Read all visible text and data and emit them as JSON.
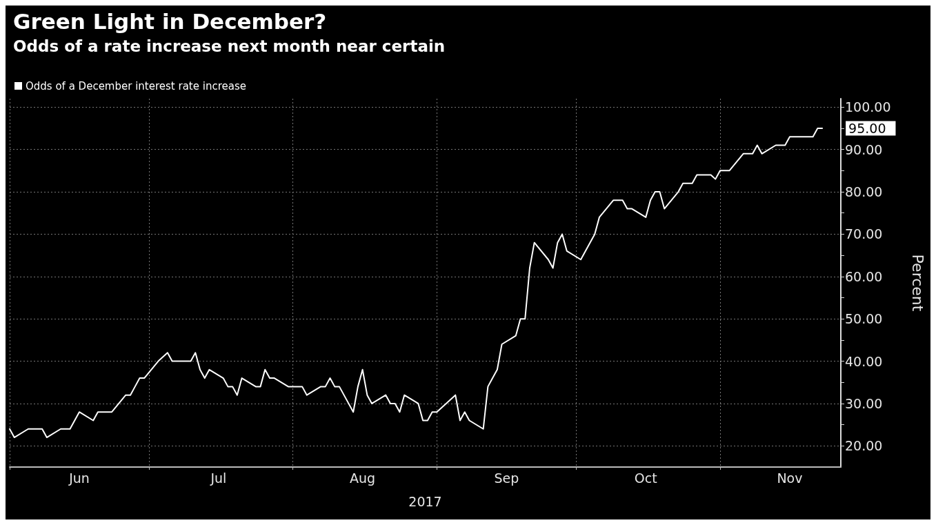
{
  "chart_data": {
    "type": "line",
    "title": "Green Light in December?",
    "subtitle": "Odds of a rate increase next month near certain",
    "xlabel": "2017",
    "ylabel": "Percent",
    "x": [
      "2017-06-01",
      "2017-06-02",
      "2017-06-05",
      "2017-06-06",
      "2017-06-07",
      "2017-06-08",
      "2017-06-09",
      "2017-06-12",
      "2017-06-13",
      "2017-06-14",
      "2017-06-15",
      "2017-06-16",
      "2017-06-19",
      "2017-06-20",
      "2017-06-21",
      "2017-06-22",
      "2017-06-23",
      "2017-06-26",
      "2017-06-27",
      "2017-06-28",
      "2017-06-29",
      "2017-06-30",
      "2017-07-03",
      "2017-07-05",
      "2017-07-06",
      "2017-07-07",
      "2017-07-10",
      "2017-07-11",
      "2017-07-12",
      "2017-07-13",
      "2017-07-14",
      "2017-07-17",
      "2017-07-18",
      "2017-07-19",
      "2017-07-20",
      "2017-07-21",
      "2017-07-24",
      "2017-07-25",
      "2017-07-26",
      "2017-07-27",
      "2017-07-28",
      "2017-07-31",
      "2017-08-01",
      "2017-08-02",
      "2017-08-03",
      "2017-08-04",
      "2017-08-07",
      "2017-08-08",
      "2017-08-09",
      "2017-08-10",
      "2017-08-11",
      "2017-08-14",
      "2017-08-15",
      "2017-08-16",
      "2017-08-17",
      "2017-08-18",
      "2017-08-21",
      "2017-08-22",
      "2017-08-23",
      "2017-08-24",
      "2017-08-25",
      "2017-08-28",
      "2017-08-29",
      "2017-08-30",
      "2017-08-31",
      "2017-09-01",
      "2017-09-05",
      "2017-09-06",
      "2017-09-07",
      "2017-09-08",
      "2017-09-11",
      "2017-09-12",
      "2017-09-13",
      "2017-09-14",
      "2017-09-15",
      "2017-09-18",
      "2017-09-19",
      "2017-09-20",
      "2017-09-21",
      "2017-09-22",
      "2017-09-25",
      "2017-09-26",
      "2017-09-27",
      "2017-09-28",
      "2017-09-29",
      "2017-10-02",
      "2017-10-03",
      "2017-10-04",
      "2017-10-05",
      "2017-10-06",
      "2017-10-09",
      "2017-10-10",
      "2017-10-11",
      "2017-10-12",
      "2017-10-13",
      "2017-10-16",
      "2017-10-17",
      "2017-10-18",
      "2017-10-19",
      "2017-10-20",
      "2017-10-23",
      "2017-10-24",
      "2017-10-25",
      "2017-10-26",
      "2017-10-27",
      "2017-10-30",
      "2017-10-31",
      "2017-11-01",
      "2017-11-02",
      "2017-11-03",
      "2017-11-06",
      "2017-11-07",
      "2017-11-08",
      "2017-11-09",
      "2017-11-10",
      "2017-11-13",
      "2017-11-14",
      "2017-11-15",
      "2017-11-16",
      "2017-11-17",
      "2017-11-20",
      "2017-11-21",
      "2017-11-22",
      "2017-11-23"
    ],
    "series": [
      {
        "name": "Odds of a December interest rate increase",
        "color": "#ffffff",
        "values": [
          24,
          22,
          24,
          24,
          24,
          24,
          22,
          24,
          24,
          24,
          26,
          28,
          26,
          28,
          28,
          28,
          28,
          32,
          32,
          34,
          36,
          36,
          40,
          42,
          40,
          40,
          40,
          42,
          38,
          36,
          38,
          36,
          34,
          34,
          32,
          36,
          34,
          34,
          38,
          36,
          36,
          34,
          34,
          34,
          34,
          32,
          34,
          34,
          36,
          34,
          34,
          28,
          34,
          38,
          32,
          30,
          32,
          30,
          30,
          28,
          32,
          30,
          26,
          26,
          28,
          28,
          32,
          26,
          28,
          26,
          24,
          34,
          36,
          38,
          44,
          46,
          50,
          50,
          62,
          68,
          64,
          62,
          68,
          70,
          66,
          64,
          66,
          68,
          70,
          74,
          78,
          78,
          78,
          76,
          76,
          74,
          78,
          80,
          80,
          76,
          80,
          82,
          82,
          82,
          84,
          84,
          83,
          85,
          85,
          85,
          89,
          89,
          89,
          91,
          89,
          91,
          91,
          91,
          93,
          93,
          93,
          93,
          95,
          95
        ]
      }
    ],
    "xlim": [
      "2017-06-01",
      "2017-11-27"
    ],
    "xticks": [
      {
        "value": "2017-06-01",
        "label": null
      },
      {
        "value": "2017-06-16",
        "label": "Jun"
      },
      {
        "value": "2017-07-01",
        "label": null
      },
      {
        "value": "2017-07-16",
        "label": "Jul"
      },
      {
        "value": "2017-08-01",
        "label": null
      },
      {
        "value": "2017-08-16",
        "label": "Aug"
      },
      {
        "value": "2017-09-01",
        "label": null
      },
      {
        "value": "2017-09-16",
        "label": "Sep"
      },
      {
        "value": "2017-10-01",
        "label": null
      },
      {
        "value": "2017-10-16",
        "label": "Oct"
      },
      {
        "value": "2017-11-01",
        "label": null
      },
      {
        "value": "2017-11-16",
        "label": "Nov"
      }
    ],
    "ylim": [
      15,
      102
    ],
    "yticks": [
      {
        "value": 20,
        "label": "20.00"
      },
      {
        "value": 25,
        "label": null
      },
      {
        "value": 30,
        "label": "30.00"
      },
      {
        "value": 35,
        "label": null
      },
      {
        "value": 40,
        "label": "40.00"
      },
      {
        "value": 45,
        "label": null
      },
      {
        "value": 50,
        "label": "50.00"
      },
      {
        "value": 55,
        "label": null
      },
      {
        "value": 60,
        "label": "60.00"
      },
      {
        "value": 65,
        "label": null
      },
      {
        "value": 70,
        "label": "70.00"
      },
      {
        "value": 75,
        "label": null
      },
      {
        "value": 80,
        "label": "80.00"
      },
      {
        "value": 85,
        "label": null
      },
      {
        "value": 90,
        "label": "90.00"
      },
      {
        "value": 95,
        "label": null
      },
      {
        "value": 100,
        "label": "100.00"
      }
    ],
    "annotations": [
      {
        "text": "95.00",
        "x": "2017-11-23",
        "y": 95
      }
    ],
    "grid": true,
    "legend": "top left",
    "marker": "none",
    "line_style": "solid"
  }
}
